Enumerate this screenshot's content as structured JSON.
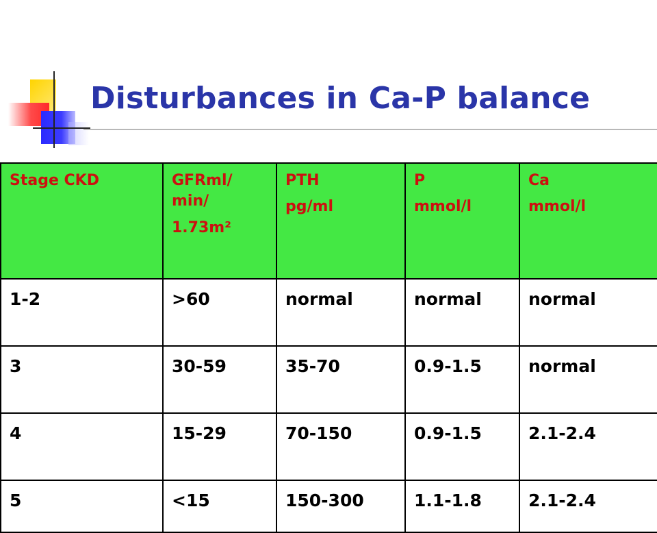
{
  "slide": {
    "title": "Disturbances in Ca-P balance"
  },
  "colors": {
    "title": "#2a35a8",
    "header_bg": "#44e844",
    "header_text": "#cc1010",
    "body_text": "#000000"
  },
  "table": {
    "headers": [
      [
        "Stage CKD"
      ],
      [
        "GFRml/",
        "min/",
        "1.73m²"
      ],
      [
        "PTH",
        "pg/ml"
      ],
      [
        "P",
        "mmol/l"
      ],
      [
        "Ca",
        "mmol/l"
      ]
    ],
    "rows": [
      [
        "1-2",
        ">60",
        "normal",
        "normal",
        "normal"
      ],
      [
        "3",
        "30-59",
        "35-70",
        "0.9-1.5",
        "normal"
      ],
      [
        "4",
        "15-29",
        "70-150",
        "0.9-1.5",
        "2.1-2.4"
      ],
      [
        "5",
        "<15",
        "150-300",
        "1.1-1.8",
        "2.1-2.4"
      ]
    ]
  }
}
